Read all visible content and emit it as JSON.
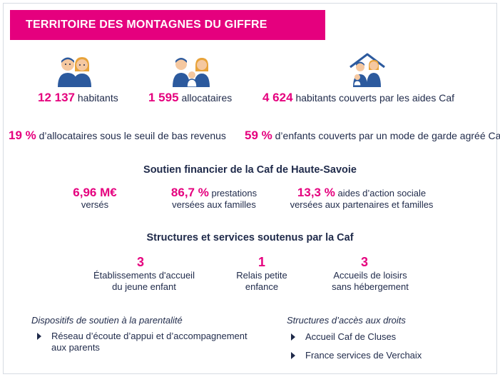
{
  "banner": {
    "title": "TERRITOIRE DES MONTAGNES DU GIFFRE"
  },
  "stats_top": [
    {
      "value": "12 137",
      "label": "habitants",
      "icon": "couple-icon"
    },
    {
      "value": "1 595",
      "label": "allocataires",
      "icon": "family-icon"
    },
    {
      "value": "4 624",
      "label": "habitants couverts par les aides Caf",
      "icon": "house-family-icon"
    }
  ],
  "stats_mid": [
    {
      "value": "19 %",
      "label": "d’allocataires sous le seuil de bas revenus"
    },
    {
      "value": "59 %",
      "label": "d’enfants couverts par un mode de garde agréé Caf"
    }
  ],
  "financial": {
    "title": "Soutien financier de la Caf de Haute-Savoie",
    "items": [
      {
        "value": "6,96 M€",
        "line1": "",
        "line2": "versés"
      },
      {
        "value": "86,7 %",
        "line1": "prestations",
        "line2": "versées aux familles"
      },
      {
        "value": "13,3 %",
        "line1": "aides d’action sociale",
        "line2": "versées aux partenaires et familles"
      }
    ]
  },
  "structures": {
    "title": "Structures et services soutenus par la Caf",
    "items": [
      {
        "value": "3",
        "line1": "Établissements d'accueil",
        "line2": "du jeune enfant"
      },
      {
        "value": "1",
        "line1": "Relais petite",
        "line2": "enfance"
      },
      {
        "value": "3",
        "line1": "Accueils de loisirs",
        "line2": "sans hébergement"
      }
    ]
  },
  "parentalite": {
    "title": "Dispositifs de soutien à la parentalité",
    "items": [
      "Réseau d’écoute d’appui et d’accompagnement aux parents"
    ]
  },
  "acces_droits": {
    "title": "Structures d’accès aux droits",
    "items": [
      "Accueil Caf de Cluses",
      "France services de Verchaix"
    ]
  },
  "colors": {
    "accent": "#e5007e",
    "navy": "#1f2a4a",
    "icon_blue": "#2c5a9e",
    "icon_skin": "#f5c8a0",
    "icon_hair": "#e8a33a"
  }
}
